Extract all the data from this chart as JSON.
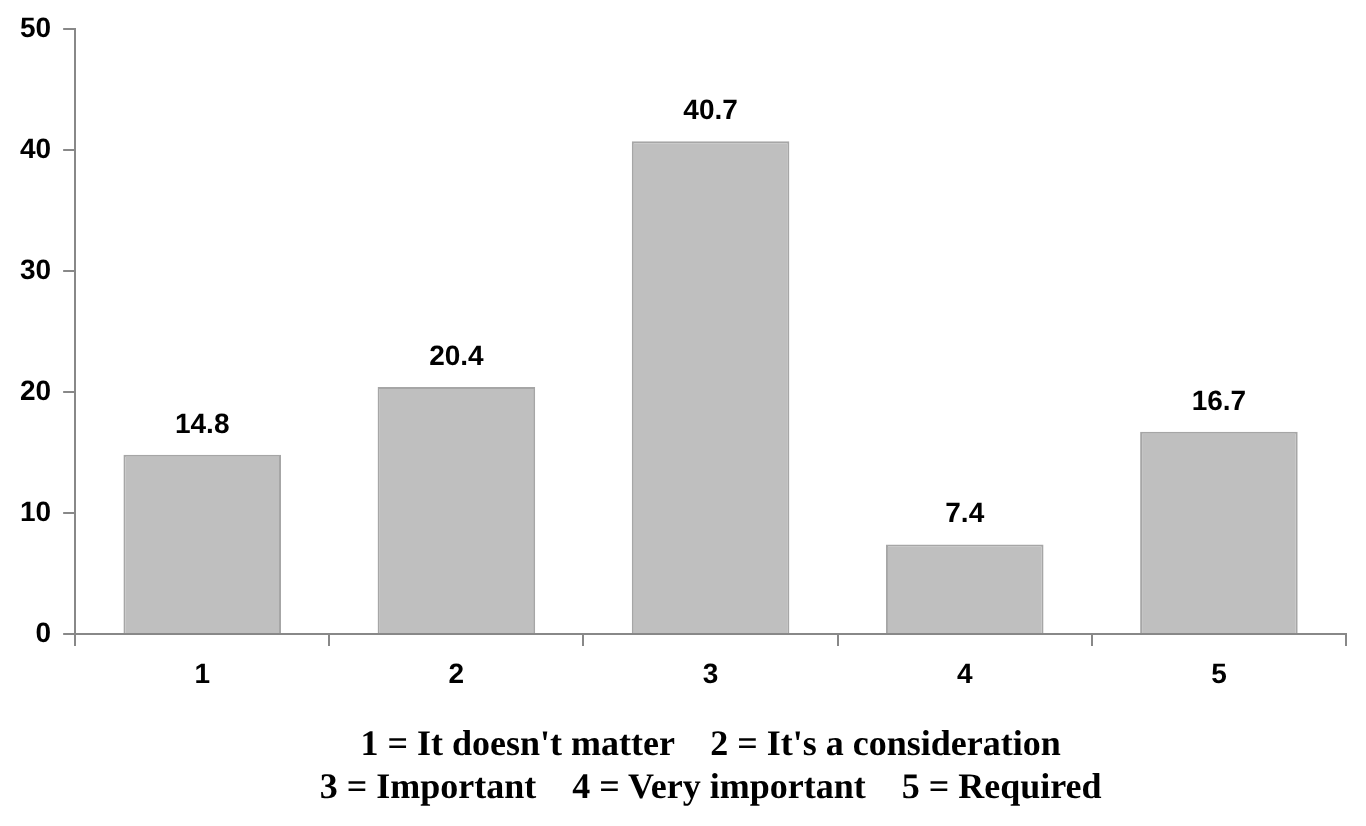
{
  "chart_data": {
    "type": "bar",
    "categories": [
      "1",
      "2",
      "3",
      "4",
      "5"
    ],
    "values": [
      14.8,
      20.4,
      40.7,
      7.4,
      16.7
    ],
    "color": "#bfbfbf",
    "ylim": [
      0,
      50
    ],
    "yticks": [
      0,
      10,
      20,
      30,
      40,
      50
    ],
    "xlabel": "1 = It doesn't matter    2 = It's a consideration\n3 = Important    4 = Very important    5 = Required",
    "data_labels": true,
    "grid": false,
    "legend": false
  }
}
